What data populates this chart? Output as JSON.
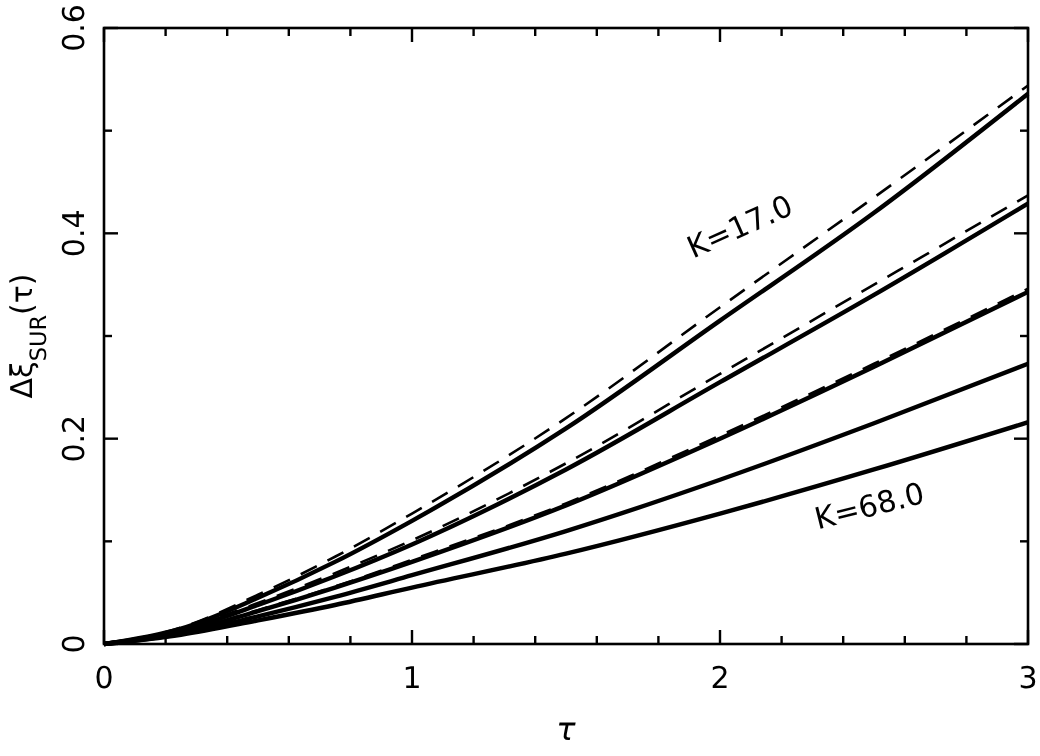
{
  "chart_data": {
    "type": "line",
    "xlabel": "τ",
    "ylabel": "Δξ$_{SUR}$(τ)",
    "xlim": [
      0,
      3
    ],
    "ylim": [
      0,
      0.6
    ],
    "xticks": [
      0,
      {
        "value": 0.2,
        "label": null
      },
      {
        "value": 0.4,
        "label": null
      },
      {
        "value": 0.6,
        "label": null
      },
      {
        "value": 0.8,
        "label": null
      },
      1,
      {
        "value": 1.2,
        "label": null
      },
      {
        "value": 1.4,
        "label": null
      },
      {
        "value": 1.6,
        "label": null
      },
      {
        "value": 1.8,
        "label": null
      },
      2,
      {
        "value": 2.2,
        "label": null
      },
      {
        "value": 2.4,
        "label": null
      },
      {
        "value": 2.6,
        "label": null
      },
      {
        "value": 2.8,
        "label": null
      },
      3
    ],
    "yticks": [
      0,
      {
        "value": 0.1,
        "label": null
      },
      0.2,
      {
        "value": 0.3,
        "label": null
      },
      0.4,
      {
        "value": 0.5,
        "label": null
      },
      0.6
    ],
    "grid": false,
    "marker": "none",
    "x": [
      0,
      0.25,
      0.5,
      0.75,
      1,
      1.5,
      2,
      2.5,
      3
    ],
    "series": [
      {
        "color": "#000000",
        "line_style": "dashed",
        "values": [
          0,
          0.016,
          0.048,
          0.085,
          0.127,
          0.22,
          0.328,
          0.435,
          0.544
        ]
      },
      {
        "color": "#000000",
        "line_style": "dashed",
        "values": [
          0,
          0.014,
          0.04,
          0.069,
          0.101,
          0.176,
          0.263,
          0.35,
          0.437
        ]
      },
      {
        "color": "#000000",
        "line_style": "dashed",
        "values": [
          0,
          0.011,
          0.033,
          0.056,
          0.082,
          0.137,
          0.203,
          0.273,
          0.346
        ]
      },
      {
        "color": "#000000",
        "line_style": "solid",
        "values": [
          0,
          0.015,
          0.045,
          0.08,
          0.12,
          0.21,
          0.315,
          0.42,
          0.536
        ]
      },
      {
        "color": "#000000",
        "line_style": "solid",
        "values": [
          0,
          0.013,
          0.038,
          0.066,
          0.097,
          0.17,
          0.255,
          0.34,
          0.429
        ]
      },
      {
        "color": "#000000",
        "line_style": "solid",
        "values": [
          0,
          0.011,
          0.032,
          0.055,
          0.08,
          0.135,
          0.2,
          0.27,
          0.343
        ]
      },
      {
        "color": "#000000",
        "line_style": "solid",
        "values": [
          0,
          0.01,
          0.027,
          0.046,
          0.067,
          0.11,
          0.16,
          0.215,
          0.273
        ]
      },
      {
        "color": "#000000",
        "line_style": "solid",
        "values": [
          0,
          0.009,
          0.023,
          0.038,
          0.055,
          0.088,
          0.127,
          0.17,
          0.216
        ]
      }
    ],
    "annotations": [
      "K=17.0",
      "K=68.0"
    ]
  }
}
